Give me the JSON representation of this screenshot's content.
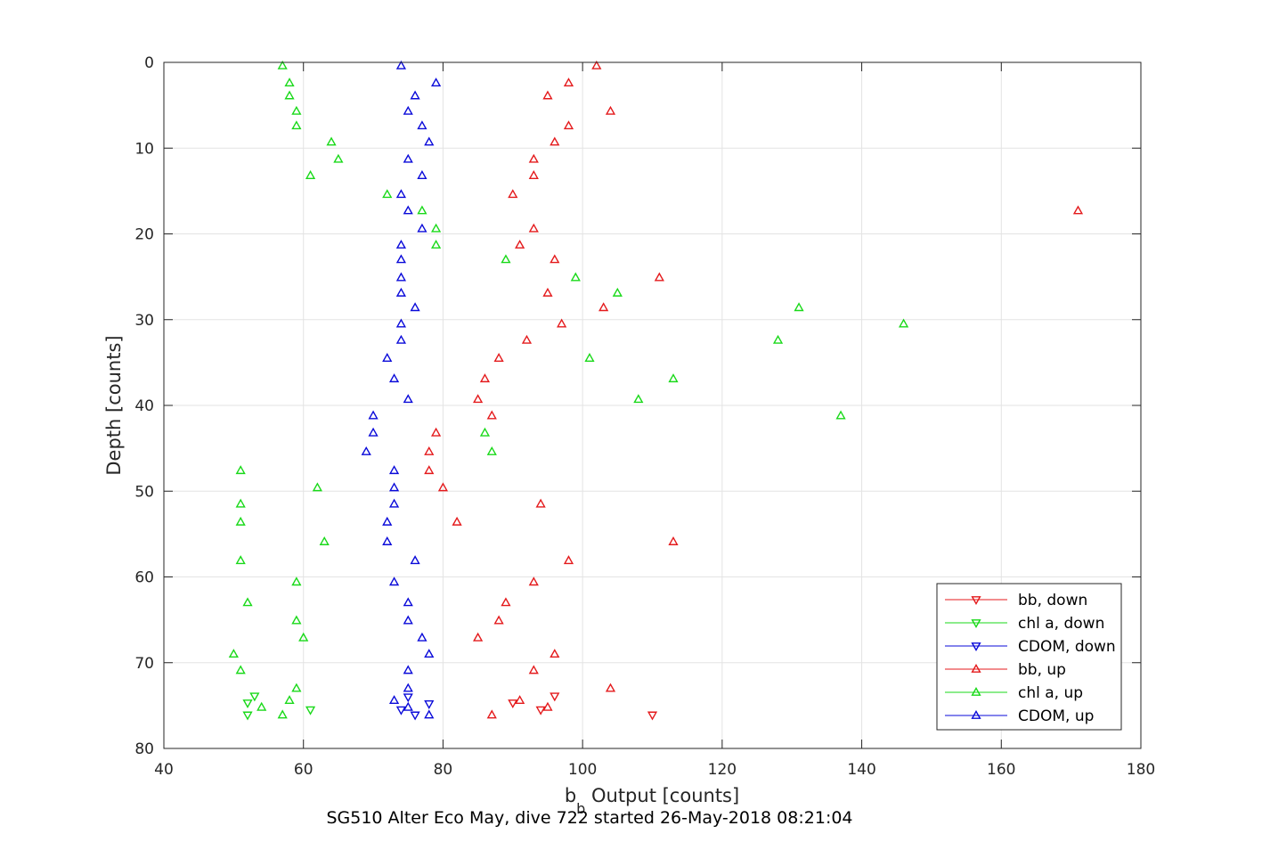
{
  "chart_data": {
    "type": "scatter",
    "xlabel_main": "b",
    "xlabel_sub": "b",
    "xlabel_rest": " Output [counts]",
    "ylabel": "Depth [counts]",
    "caption": "SG510 Alter Eco May, dive 722 started 26-May-2018 08:21:04",
    "xlim": [
      40,
      180
    ],
    "ylim": [
      0,
      80
    ],
    "y_reversed": true,
    "grid": true,
    "legend_position": "bottom-right",
    "xticks": [
      "40",
      "60",
      "80",
      "100",
      "120",
      "140",
      "160",
      "180"
    ],
    "yticks": [
      "0",
      "10",
      "20",
      "30",
      "40",
      "50",
      "60",
      "70",
      "80"
    ],
    "series": [
      {
        "name": "bb, down",
        "color": "#e41a1c",
        "marker": "triangle-down",
        "points": [
          [
            90,
            74.7
          ],
          [
            94,
            75.5
          ],
          [
            96,
            73.9
          ],
          [
            110,
            76.1
          ]
        ]
      },
      {
        "name": "chl a, down",
        "color": "#19d919",
        "marker": "triangle-down",
        "points": [
          [
            52,
            74.7
          ],
          [
            53,
            73.9
          ],
          [
            52,
            76.1
          ],
          [
            61,
            75.5
          ]
        ]
      },
      {
        "name": "CDOM, down",
        "color": "#0a0ad9",
        "marker": "triangle-down",
        "points": [
          [
            74,
            75.5
          ],
          [
            75,
            74.0
          ],
          [
            76,
            76.1
          ],
          [
            78,
            74.8
          ]
        ]
      },
      {
        "name": "bb, up",
        "color": "#e41a1c",
        "marker": "triangle-up",
        "points": [
          [
            102,
            0.4
          ],
          [
            98,
            2.4
          ],
          [
            95,
            3.9
          ],
          [
            104,
            5.7
          ],
          [
            98,
            7.4
          ],
          [
            96,
            9.3
          ],
          [
            93,
            11.3
          ],
          [
            93,
            13.2
          ],
          [
            90,
            15.4
          ],
          [
            171,
            17.3
          ],
          [
            93,
            19.4
          ],
          [
            91,
            21.3
          ],
          [
            96,
            23.0
          ],
          [
            111,
            25.1
          ],
          [
            95,
            26.9
          ],
          [
            103,
            28.6
          ],
          [
            97,
            30.5
          ],
          [
            92,
            32.4
          ],
          [
            88,
            34.5
          ],
          [
            86,
            36.9
          ],
          [
            85,
            39.3
          ],
          [
            87,
            41.2
          ],
          [
            79,
            43.2
          ],
          [
            78,
            45.4
          ],
          [
            78,
            47.6
          ],
          [
            80,
            49.6
          ],
          [
            94,
            51.5
          ],
          [
            82,
            53.6
          ],
          [
            113,
            55.9
          ],
          [
            98,
            58.1
          ],
          [
            93,
            60.6
          ],
          [
            89,
            63.0
          ],
          [
            88,
            65.1
          ],
          [
            85,
            67.1
          ],
          [
            96,
            69.0
          ],
          [
            93,
            70.9
          ],
          [
            104,
            73.0
          ],
          [
            91,
            74.4
          ],
          [
            95,
            75.2
          ],
          [
            87,
            76.1
          ]
        ]
      },
      {
        "name": "chl a, up",
        "color": "#19d919",
        "marker": "triangle-up",
        "points": [
          [
            57,
            0.4
          ],
          [
            58,
            2.4
          ],
          [
            58,
            3.9
          ],
          [
            59,
            5.7
          ],
          [
            59,
            7.4
          ],
          [
            64,
            9.3
          ],
          [
            65,
            11.3
          ],
          [
            61,
            13.2
          ],
          [
            72,
            15.4
          ],
          [
            77,
            17.3
          ],
          [
            79,
            19.4
          ],
          [
            79,
            21.3
          ],
          [
            89,
            23.0
          ],
          [
            99,
            25.1
          ],
          [
            105,
            26.9
          ],
          [
            131,
            28.6
          ],
          [
            146,
            30.5
          ],
          [
            128,
            32.4
          ],
          [
            101,
            34.5
          ],
          [
            113,
            36.9
          ],
          [
            108,
            39.3
          ],
          [
            137,
            41.2
          ],
          [
            86,
            43.2
          ],
          [
            87,
            45.4
          ],
          [
            51,
            47.6
          ],
          [
            62,
            49.6
          ],
          [
            51,
            51.5
          ],
          [
            51,
            53.6
          ],
          [
            63,
            55.9
          ],
          [
            51,
            58.1
          ],
          [
            59,
            60.6
          ],
          [
            52,
            63.0
          ],
          [
            59,
            65.1
          ],
          [
            60,
            67.1
          ],
          [
            50,
            69.0
          ],
          [
            51,
            70.9
          ],
          [
            59,
            73.0
          ],
          [
            58,
            74.4
          ],
          [
            54,
            75.2
          ],
          [
            57,
            76.1
          ]
        ]
      },
      {
        "name": "CDOM, up",
        "color": "#0a0ad9",
        "marker": "triangle-up",
        "points": [
          [
            74,
            0.4
          ],
          [
            79,
            2.4
          ],
          [
            76,
            3.9
          ],
          [
            75,
            5.7
          ],
          [
            77,
            7.4
          ],
          [
            78,
            9.3
          ],
          [
            75,
            11.3
          ],
          [
            77,
            13.2
          ],
          [
            74,
            15.4
          ],
          [
            75,
            17.3
          ],
          [
            77,
            19.4
          ],
          [
            74,
            21.3
          ],
          [
            74,
            23.0
          ],
          [
            74,
            25.1
          ],
          [
            74,
            26.9
          ],
          [
            76,
            28.6
          ],
          [
            74,
            30.5
          ],
          [
            74,
            32.4
          ],
          [
            72,
            34.5
          ],
          [
            73,
            36.9
          ],
          [
            75,
            39.3
          ],
          [
            70,
            41.2
          ],
          [
            70,
            43.2
          ],
          [
            69,
            45.4
          ],
          [
            73,
            47.6
          ],
          [
            73,
            49.6
          ],
          [
            73,
            51.5
          ],
          [
            72,
            53.6
          ],
          [
            72,
            55.9
          ],
          [
            76,
            58.1
          ],
          [
            73,
            60.6
          ],
          [
            75,
            63.0
          ],
          [
            75,
            65.1
          ],
          [
            77,
            67.1
          ],
          [
            78,
            69.0
          ],
          [
            75,
            70.9
          ],
          [
            75,
            73.0
          ],
          [
            73,
            74.4
          ],
          [
            75,
            75.2
          ],
          [
            78,
            76.1
          ]
        ]
      }
    ]
  }
}
